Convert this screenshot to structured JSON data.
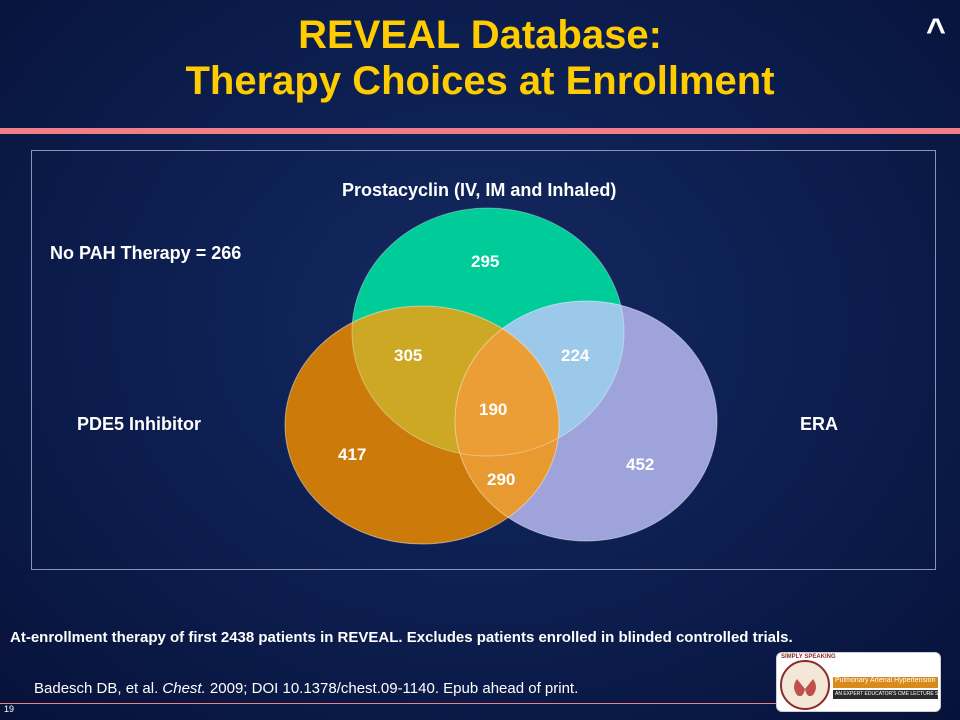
{
  "slide": {
    "title_line1": "REVEAL Database:",
    "title_line2": "Therapy Choices at Enrollment",
    "caret": "^",
    "slide_number": "19"
  },
  "diagram": {
    "label_prostacyclin": "Prostacyclin (IV, IM and Inhaled)",
    "label_no_therapy": "No PAH Therapy = 266",
    "label_pde5": "PDE5 Inhibitor",
    "label_era": "ERA",
    "regions": {
      "prostacyclin_only": "295",
      "prostacyclin_pde5": "305",
      "prostacyclin_era": "224",
      "all_three": "190",
      "pde5_only": "417",
      "pde5_era": "290",
      "era_only": "452"
    },
    "colors": {
      "prostacyclin": "#00cc99",
      "pde5": "#cc7a0a",
      "era": "#9fa3db",
      "prostacyclin_pde5": "#cca824",
      "prostacyclin_era": "#9cc9ea",
      "all_three": "#eb9e35",
      "pde5_era": "#e89a30"
    }
  },
  "footer": {
    "note": "At-enrollment therapy of first 2438 patients in REVEAL. Excludes patients enrolled in blinded controlled trials.",
    "citation_authors": "Badesch DB, et al. ",
    "citation_journal": "Chest.",
    "citation_rest": " 2009; DOI 10.1378/chest.09-1140. Epub ahead of print."
  },
  "logo": {
    "brand": "SIMPLY SPEAKING",
    "subtitle": "Pulmonary Arterial Hypertension",
    "tagline": "AN EXPERT EDUCATOR'S CME LECTURE SERIES"
  }
}
